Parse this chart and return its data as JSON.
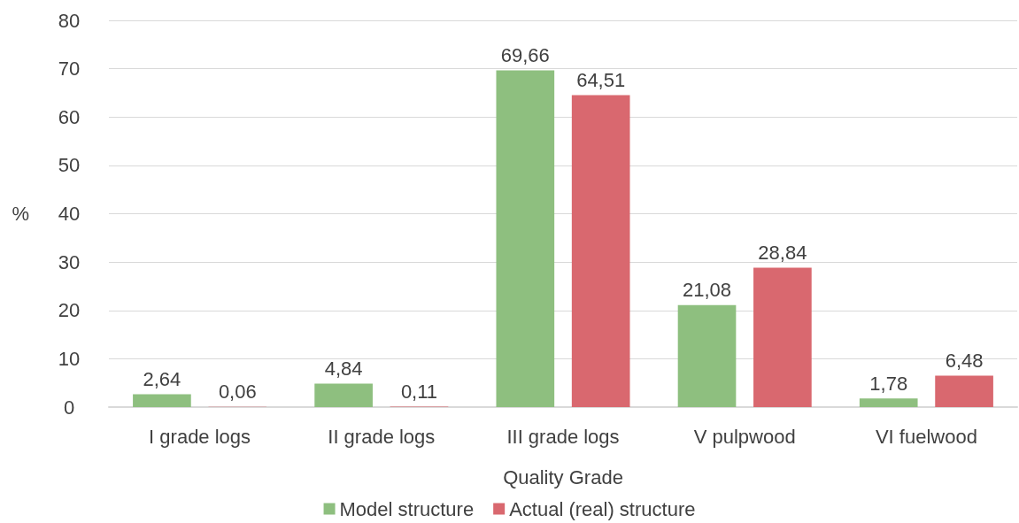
{
  "chart_data": {
    "type": "bar",
    "xlabel": "Quality Grade",
    "ylabel": "%",
    "categories": [
      "I grade logs",
      "II grade logs",
      "III grade logs",
      "V pulpwood",
      "VI fuelwood"
    ],
    "series": [
      {
        "name": "Model structure",
        "color": "#8ebf7f",
        "values": [
          2.64,
          4.84,
          69.66,
          21.08,
          1.78
        ],
        "value_labels": [
          "2,64",
          "4,84",
          "69,66",
          "21,08",
          "1,78"
        ]
      },
      {
        "name": "Actual (real) structure",
        "color": "#d9686f",
        "values": [
          0.06,
          0.11,
          64.51,
          28.84,
          6.48
        ],
        "value_labels": [
          "0,06",
          "0,11",
          "64,51",
          "28,84",
          "6,48"
        ]
      }
    ],
    "ylim": [
      0,
      80
    ],
    "yticks": [
      0,
      10,
      20,
      30,
      40,
      50,
      60,
      70,
      80
    ],
    "grid": "y",
    "legend": "bottom"
  }
}
